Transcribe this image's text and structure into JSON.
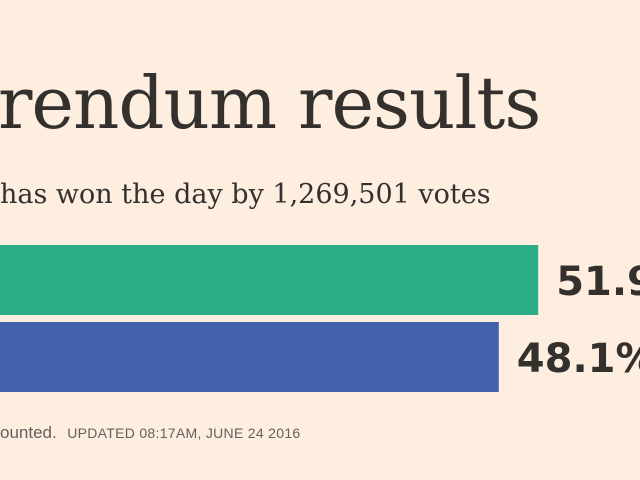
{
  "title": "rendum results",
  "subtitle": "has won the day by 1,269,501 votes",
  "chart_data": {
    "type": "bar",
    "orientation": "horizontal",
    "values": [
      51.9,
      48.1
    ],
    "value_labels": [
      "51.9",
      "48.1%"
    ],
    "colors": [
      "#2bae85",
      "#4462ac"
    ],
    "xlim": [
      0,
      100
    ]
  },
  "footer": {
    "counted_text": "ounted.",
    "updated_text": "UPDATED 08:17AM, JUNE 24 2016"
  }
}
